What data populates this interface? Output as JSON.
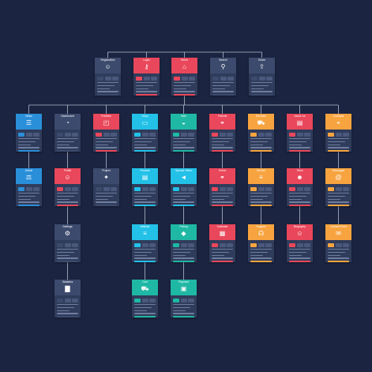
{
  "colors": {
    "background": "#1b2440",
    "card": "#303c5b",
    "line": "#cfd6e6",
    "red": "#e9475b",
    "blue": "#2a8fd9",
    "cyan": "#23c1e8",
    "teal": "#1fb8a4",
    "orange": "#f7a440",
    "slate": "#3c4a6d"
  },
  "diagram": {
    "top": [
      {
        "id": "registration",
        "label": "Registration",
        "color": "slate",
        "icon": "user-icon",
        "glyph": "☺"
      },
      {
        "id": "login",
        "label": "Login",
        "color": "red",
        "icon": "key-icon",
        "glyph": "⚷"
      },
      {
        "id": "home",
        "label": "Home",
        "color": "red",
        "icon": "home-icon",
        "glyph": "⌂"
      },
      {
        "id": "search",
        "label": "Search",
        "color": "slate",
        "icon": "search-icon",
        "glyph": "⚲"
      },
      {
        "id": "share",
        "label": "Share",
        "color": "slate",
        "icon": "share-icon",
        "glyph": "⇪"
      }
    ],
    "sections": [
      {
        "id": "news",
        "label": "News",
        "color": "blue",
        "icon": "newspaper-icon",
        "glyph": "☰",
        "children": [
          {
            "id": "article",
            "label": "Article",
            "color": "blue",
            "icon": "scales-icon",
            "glyph": "⚖"
          }
        ]
      },
      {
        "id": "dashboard",
        "label": "Dashboard",
        "color": "slate",
        "icon": "gauge-icon",
        "glyph": "◔",
        "children": [
          {
            "id": "profile",
            "label": "Profile",
            "color": "red",
            "icon": "user-icon",
            "glyph": "☺"
          },
          {
            "id": "settings",
            "label": "Settings",
            "color": "slate",
            "icon": "gear-icon",
            "glyph": "⚙"
          },
          {
            "id": "statistics",
            "label": "Statistics",
            "color": "slate",
            "icon": "bar-chart-icon",
            "glyph": "▇"
          }
        ]
      },
      {
        "id": "portfolio",
        "label": "Portfolio",
        "color": "red",
        "icon": "presentation-icon",
        "glyph": "◰",
        "children": [
          {
            "id": "project",
            "label": "Project",
            "color": "slate",
            "icon": "lightbulb-icon",
            "glyph": "✦"
          }
        ]
      },
      {
        "id": "shop",
        "label": "Shop",
        "color": "cyan",
        "icon": "monitor-icon",
        "glyph": "▭",
        "children": [
          {
            "id": "product",
            "label": "Product",
            "color": "cyan",
            "icon": "clipboard-icon",
            "glyph": "▤"
          },
          {
            "id": "wishlist",
            "label": "Wishlist",
            "color": "cyan",
            "icon": "list-icon",
            "glyph": "≡"
          },
          {
            "id": "cart",
            "label": "Cart",
            "color": "teal",
            "icon": "cart-icon",
            "glyph": "⛟"
          }
        ]
      },
      {
        "id": "sale",
        "label": "Sale",
        "color": "teal",
        "icon": "piggy-bank-icon",
        "glyph": "◒",
        "children": [
          {
            "id": "special-offers",
            "label": "Special Offers",
            "color": "cyan",
            "icon": "megaphone-icon",
            "glyph": "◄"
          },
          {
            "id": "pricing",
            "label": "Pricing",
            "color": "teal",
            "icon": "tag-icon",
            "glyph": "◆"
          },
          {
            "id": "payment",
            "label": "Payment",
            "color": "teal",
            "icon": "cash-icon",
            "glyph": "▣"
          }
        ]
      },
      {
        "id": "friends",
        "label": "Friends",
        "color": "red",
        "icon": "handshake-icon",
        "glyph": "⚭",
        "children": [
          {
            "id": "event",
            "label": "Event",
            "color": "red",
            "icon": "handshake-icon",
            "glyph": "⚭"
          },
          {
            "id": "calendar",
            "label": "Calendar",
            "color": "red",
            "icon": "calendar-icon",
            "glyph": "▦"
          }
        ]
      },
      {
        "id": "services",
        "label": "Services",
        "color": "orange",
        "icon": "truck-icon",
        "glyph": "⛟",
        "children": [
          {
            "id": "service",
            "label": "Service",
            "color": "orange",
            "icon": "list-icon",
            "glyph": "≡"
          },
          {
            "id": "support",
            "label": "Support",
            "color": "orange",
            "icon": "headset-icon",
            "glyph": "☊"
          }
        ]
      },
      {
        "id": "about-us",
        "label": "About Us",
        "color": "red",
        "icon": "document-icon",
        "glyph": "▤",
        "children": [
          {
            "id": "team",
            "label": "Team",
            "color": "red",
            "icon": "team-icon",
            "glyph": "☻"
          },
          {
            "id": "biography",
            "label": "Biography",
            "color": "red",
            "icon": "id-badge-icon",
            "glyph": "☺"
          }
        ]
      },
      {
        "id": "contacts",
        "label": "Contacts",
        "color": "orange",
        "icon": "map-icon",
        "glyph": "⌖",
        "children": [
          {
            "id": "messages",
            "label": "Messages",
            "color": "orange",
            "icon": "at-sign-icon",
            "glyph": "@"
          },
          {
            "id": "contact-form",
            "label": "Contact Form",
            "color": "orange",
            "icon": "envelope-icon",
            "glyph": "✉"
          }
        ]
      }
    ]
  }
}
